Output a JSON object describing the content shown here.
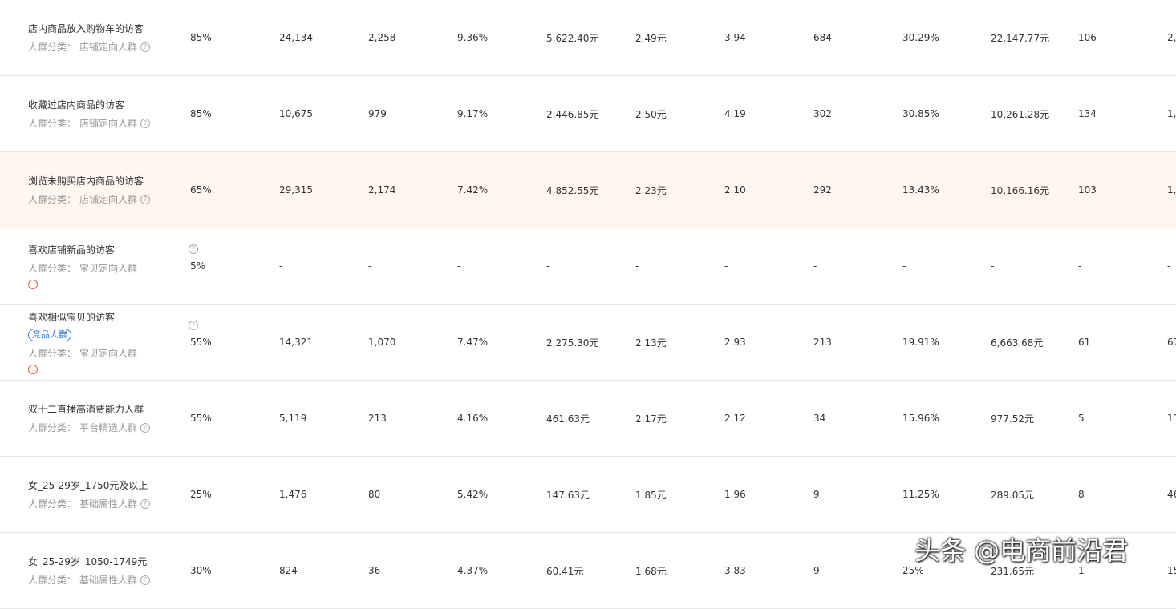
{
  "table": {
    "rows": [
      {
        "name": "店内商品放入购物车的访客",
        "category_label": "人群分类：",
        "category": "店铺定向人群",
        "cells": [
          "85%",
          "24,134",
          "2,258",
          "9.36%",
          "5,622.40元",
          "2.49元",
          "3.94",
          "684",
          "30.29%",
          "22,147.77元",
          "106",
          "2,"
        ]
      },
      {
        "name": "收藏过店内商品的访客",
        "category_label": "人群分类：",
        "category": "店铺定向人群",
        "cells": [
          "85%",
          "10,675",
          "979",
          "9.17%",
          "2,446.85元",
          "2.50元",
          "4.19",
          "302",
          "30.85%",
          "10,261.28元",
          "134",
          "1,("
        ]
      },
      {
        "name": "浏览未购买店内商品的访客",
        "category_label": "人群分类：",
        "category": "店铺定向人群",
        "highlight": true,
        "cells": [
          "65%",
          "29,315",
          "2,174",
          "7.42%",
          "4,852.55元",
          "2.23元",
          "2.10",
          "292",
          "13.43%",
          "10,166.16元",
          "103",
          "1,"
        ]
      },
      {
        "name": "喜欢店铺新品的访客",
        "category_label": "人群分类：",
        "category": "宝贝定向人群",
        "icon": "play",
        "cells": [
          "5%",
          "-",
          "-",
          "-",
          "-",
          "-",
          "-",
          "-",
          "-",
          "-",
          "-",
          "-"
        ]
      },
      {
        "name": "喜欢相似宝贝的访客",
        "tag": "竞品人群",
        "category_label": "人群分类：",
        "category": "宝贝定向人群",
        "icon": "pause",
        "cells": [
          "55%",
          "14,321",
          "1,070",
          "7.47%",
          "2,275.30元",
          "2.13元",
          "2.93",
          "213",
          "19.91%",
          "6,663.68元",
          "61",
          "67"
        ]
      },
      {
        "name": "双十二直播高消费能力人群",
        "category_label": "人群分类：",
        "category": "平台精选人群",
        "cells": [
          "55%",
          "5,119",
          "213",
          "4.16%",
          "461.63元",
          "2.17元",
          "2.12",
          "34",
          "15.96%",
          "977.52元",
          "5",
          "11"
        ]
      },
      {
        "name": "女_25-29岁_1750元及以上",
        "category_label": "人群分类：",
        "category": "基础属性人群",
        "cells": [
          "25%",
          "1,476",
          "80",
          "5.42%",
          "147.63元",
          "1.85元",
          "1.96",
          "9",
          "11.25%",
          "289.05元",
          "8",
          "46"
        ]
      },
      {
        "name": "女_25-29岁_1050-1749元",
        "category_label": "人群分类：",
        "category": "基础属性人群",
        "cells": [
          "30%",
          "824",
          "36",
          "4.37%",
          "60.41元",
          "1.68元",
          "3.83",
          "9",
          "25%",
          "231.65元",
          "1",
          "15"
        ]
      }
    ]
  },
  "watermark": "头条 @电商前沿君"
}
